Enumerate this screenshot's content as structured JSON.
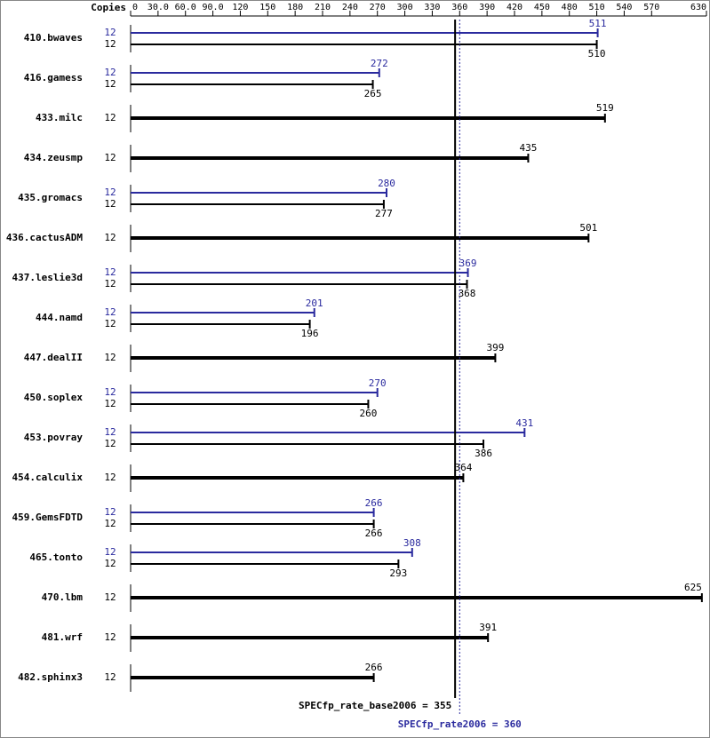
{
  "chart_data": {
    "type": "bar",
    "axis_title": "Copies",
    "categories": [
      "410.bwaves",
      "416.gamess",
      "433.milc",
      "434.zeusmp",
      "435.gromacs",
      "436.cactusADM",
      "437.leslie3d",
      "444.namd",
      "447.dealII",
      "450.soplex",
      "453.povray",
      "454.calculix",
      "459.GemsFDTD",
      "465.tonto",
      "470.lbm",
      "481.wrf",
      "482.sphinx3"
    ],
    "series": [
      {
        "color": "#000000",
        "copies": [
          12,
          12,
          12,
          12,
          12,
          12,
          12,
          12,
          12,
          12,
          12,
          12,
          12,
          12,
          12,
          12,
          12
        ],
        "values": [
          510,
          265,
          519,
          435,
          277,
          501,
          368,
          196,
          399,
          260,
          386,
          364,
          266,
          293,
          625,
          391,
          266
        ]
      },
      {
        "color": "#2a2a9e",
        "copies": [
          12,
          12,
          null,
          null,
          12,
          null,
          12,
          12,
          null,
          12,
          12,
          null,
          12,
          12,
          null,
          null,
          null
        ],
        "values": [
          511,
          272,
          null,
          null,
          280,
          null,
          369,
          201,
          null,
          270,
          431,
          null,
          266,
          308,
          null,
          null,
          null
        ]
      }
    ],
    "xlim": [
      0,
      630
    ],
    "xticks": [
      0,
      {
        "value": 30,
        "label": "30.0"
      },
      {
        "value": 60,
        "label": "60.0"
      },
      {
        "value": 90,
        "label": "90.0"
      },
      120,
      150,
      180,
      210,
      240,
      270,
      300,
      330,
      360,
      390,
      420,
      450,
      480,
      510,
      540,
      570,
      630
    ],
    "reference_lines": [
      {
        "label": "SPECfp_rate_base2006 = 355",
        "value": 355,
        "color": "#000000",
        "dashed": false
      },
      {
        "label": "SPECfp_rate2006 = 360",
        "value": 360,
        "color": "#2a2a9e",
        "dashed": true
      }
    ]
  }
}
